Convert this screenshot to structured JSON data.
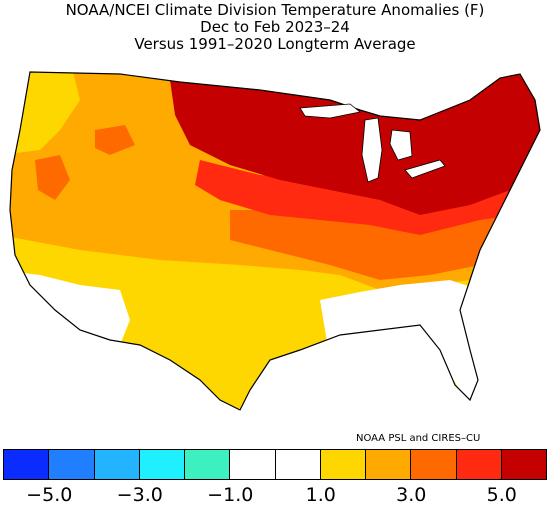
{
  "title": {
    "line1": "NOAA/NCEI Climate Division Temperature Anomalies (F)",
    "line2": "Dec to Feb 2023–24",
    "line3": "Versus 1991–2020 Longterm Average"
  },
  "credit": "NOAA PSL and CIRES–CU",
  "legend": {
    "colors": [
      "#0a2cff",
      "#1f7fff",
      "#22b4ff",
      "#1ef0ff",
      "#3cf0c0",
      "#ffffff",
      "#ffffff",
      "#ffd700",
      "#ffaa00",
      "#ff6a00",
      "#ff2a10",
      "#c40000"
    ],
    "tick_labels": [
      "−5.0",
      "−3.0",
      "−1.0",
      "1.0",
      "3.0",
      "5.0"
    ]
  },
  "map_colors": {
    "white": "#ffffff",
    "yellow": "#ffd700",
    "orange": "#ffaa00",
    "dark_orange": "#ff6a00",
    "red": "#ff2a10",
    "dark_red": "#c40000",
    "water": "#ffffff"
  }
}
